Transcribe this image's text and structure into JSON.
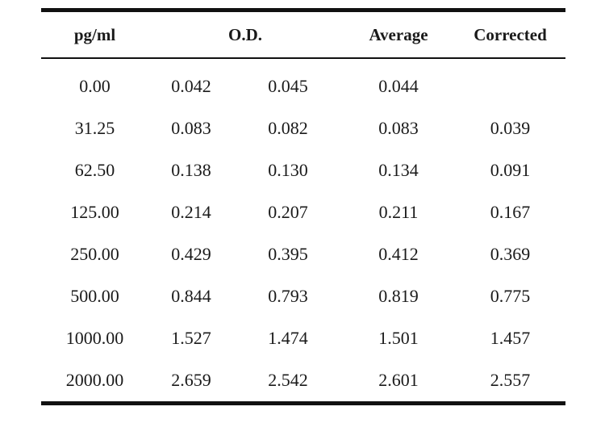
{
  "table": {
    "headers": {
      "pg": "pg/ml",
      "od": "O.D.",
      "avg": "Average",
      "cor": "Corrected"
    },
    "rows": [
      {
        "pg": "0.00",
        "od1": "0.042",
        "od2": "0.045",
        "avg": "0.044",
        "cor": ""
      },
      {
        "pg": "31.25",
        "od1": "0.083",
        "od2": "0.082",
        "avg": "0.083",
        "cor": "0.039"
      },
      {
        "pg": "62.50",
        "od1": "0.138",
        "od2": "0.130",
        "avg": "0.134",
        "cor": "0.091"
      },
      {
        "pg": "125.00",
        "od1": "0.214",
        "od2": "0.207",
        "avg": "0.211",
        "cor": "0.167"
      },
      {
        "pg": "250.00",
        "od1": "0.429",
        "od2": "0.395",
        "avg": "0.412",
        "cor": "0.369"
      },
      {
        "pg": "500.00",
        "od1": "0.844",
        "od2": "0.793",
        "avg": "0.819",
        "cor": "0.775"
      },
      {
        "pg": "1000.00",
        "od1": "1.527",
        "od2": "1.474",
        "avg": "1.501",
        "cor": "1.457"
      },
      {
        "pg": "2000.00",
        "od1": "2.659",
        "od2": "2.542",
        "avg": "2.601",
        "cor": "2.557"
      }
    ]
  }
}
